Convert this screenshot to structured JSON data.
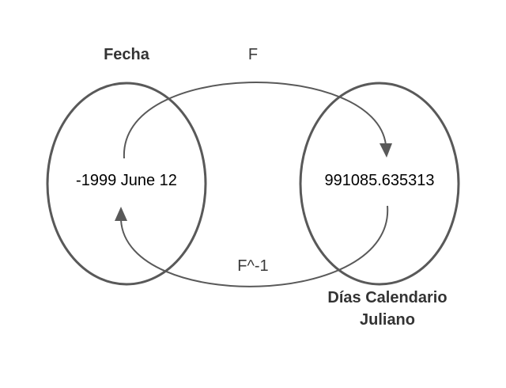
{
  "sets": {
    "left": {
      "title": "Fecha",
      "element": "-1999 June 12"
    },
    "right": {
      "title_line1": "Días Calendario",
      "title_line2": "Juliano",
      "element": "991085.635313"
    }
  },
  "mappings": {
    "forward": "F",
    "inverse": "F^-1"
  },
  "colors": {
    "stroke": "#595959",
    "text": "#333333",
    "value_text": "#000000"
  }
}
